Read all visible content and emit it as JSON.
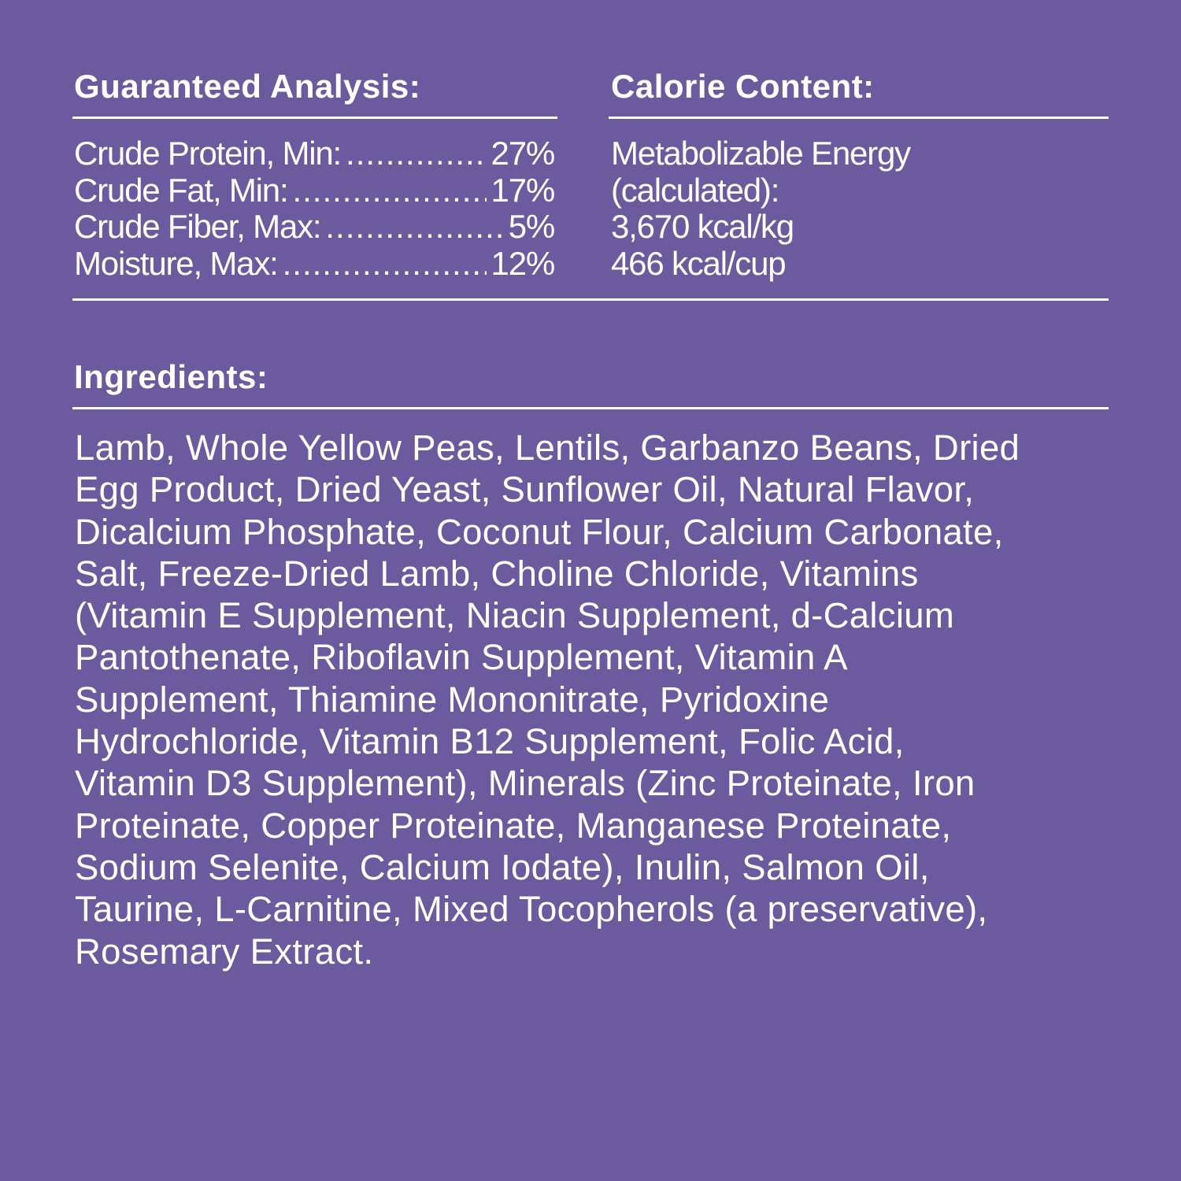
{
  "guaranteed_analysis": {
    "title": "Guaranteed Analysis:",
    "rows": [
      {
        "label": "Crude Protein, Min:",
        "value": "27%"
      },
      {
        "label": "Crude Fat, Min:",
        "value": "17%"
      },
      {
        "label": "Crude Fiber, Max:",
        "value": "5%"
      },
      {
        "label": "Moisture, Max:",
        "value": "12%"
      }
    ]
  },
  "calorie_content": {
    "title": "Calorie Content:",
    "lines": [
      "Metabolizable Energy",
      "(calculated):",
      "3,670 kcal/kg",
      "466 kcal/cup"
    ]
  },
  "ingredients": {
    "title": "Ingredients:",
    "lines": [
      "Lamb, Whole Yellow Peas, Lentils, Garbanzo Beans, Dried",
      "Egg Product, Dried Yeast, Sunflower Oil, Natural Flavor,",
      "Dicalcium Phosphate, Coconut Flour, Calcium Carbonate,",
      "Salt, Freeze-Dried Lamb, Choline Chloride, Vitamins",
      "(Vitamin E Supplement, Niacin Supplement, d-Calcium",
      "Pantothenate, Riboflavin Supplement, Vitamin A",
      "Supplement, Thiamine Mononitrate, Pyridoxine",
      "Hydrochloride, Vitamin B12 Supplement, Folic Acid,",
      "Vitamin D3 Supplement), Minerals (Zinc Proteinate, Iron",
      "Proteinate, Copper Proteinate, Manganese Proteinate,",
      "Sodium Selenite, Calcium Iodate), Inulin, Salmon Oil,",
      "Taurine, L-Carnitine, Mixed Tocopherols (a preservative),",
      "Rosemary Extract."
    ]
  },
  "colors": {
    "background": "#6c5a9e",
    "text": "#ffffff"
  }
}
